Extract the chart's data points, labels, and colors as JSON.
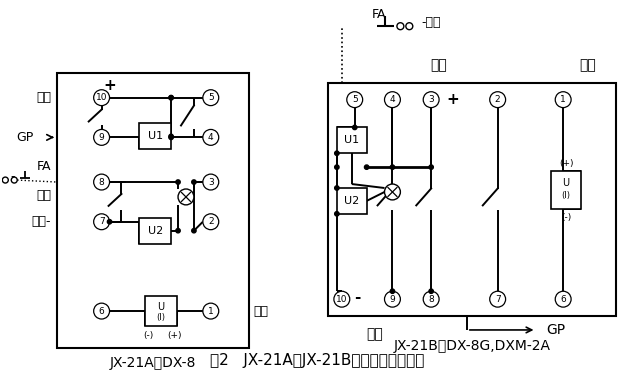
{
  "title": "图2   JX-21A、JX-21B接线图（正视图）",
  "left_label": "JX-21A代DX-8",
  "right_label": "JX-21B代DX-8G,DXM-2A",
  "bg_color": "#ffffff",
  "line_color": "#000000",
  "title_fontsize": 11,
  "label_fontsize": 10,
  "note_fontsize": 8.5
}
